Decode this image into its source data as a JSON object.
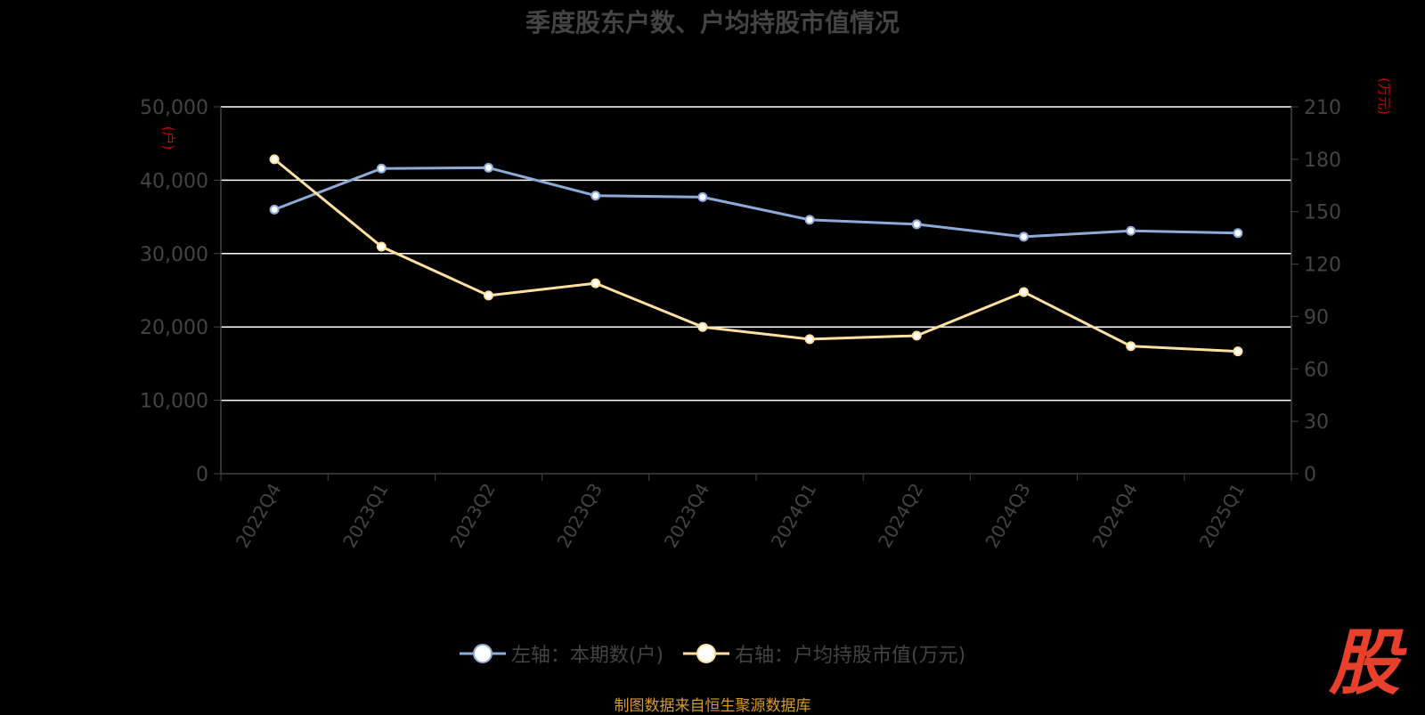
{
  "chart_data": {
    "type": "line",
    "title": "季度股东户数、户均持股市值情况",
    "categories": [
      "2022Q4",
      "2023Q1",
      "2023Q2",
      "2023Q3",
      "2023Q4",
      "2024Q1",
      "2024Q2",
      "2024Q3",
      "2024Q4",
      "2025Q1"
    ],
    "y_left": {
      "unit": "(户)",
      "range": [
        0,
        50000
      ],
      "ticks": [
        "0",
        "10,000",
        "20,000",
        "30,000",
        "40,000",
        "50,000"
      ]
    },
    "y_right": {
      "unit": "(万元)",
      "range": [
        0,
        210
      ],
      "ticks": [
        "0",
        "30",
        "60",
        "90",
        "120",
        "150",
        "180",
        "210"
      ]
    },
    "series": [
      {
        "name": "左轴：本期数(户)",
        "axis": "left",
        "color": "#8eabd8",
        "values": [
          36000,
          41600,
          41700,
          37900,
          37700,
          34600,
          34000,
          32300,
          33100,
          32800
        ]
      },
      {
        "name": "右轴：户均持股市值(万元)",
        "axis": "right",
        "color": "#ffe0a0",
        "values": [
          180,
          130,
          102,
          109,
          84,
          77,
          79,
          104,
          73,
          70
        ]
      }
    ],
    "grid": true,
    "legend_position": "bottom",
    "source": "制图数据来自恒生聚源数据库"
  },
  "logo_text": "股"
}
